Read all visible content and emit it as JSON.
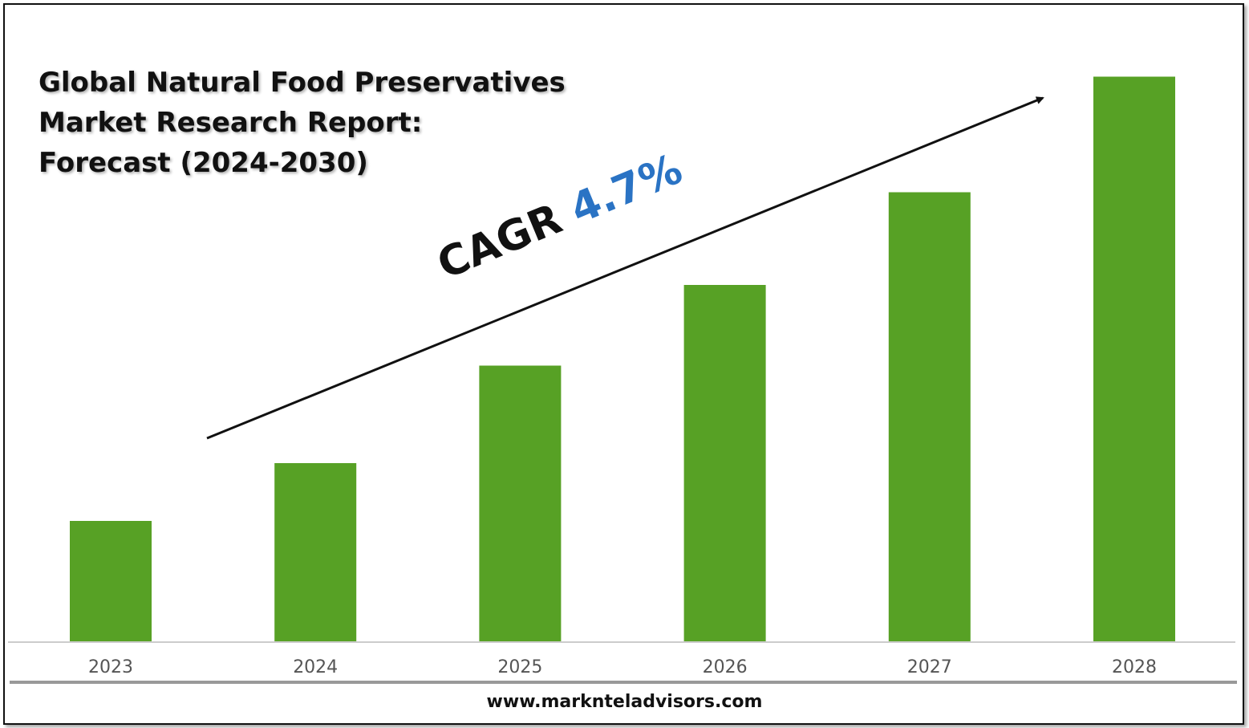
{
  "title_lines": [
    "Global Natural Food Preservatives",
    "Market Research Report:",
    "Forecast (2024-2030)"
  ],
  "annotation": {
    "label": "CAGR",
    "value": "4.7%",
    "value_color": "#2a73c4"
  },
  "footer": {
    "website": "www.marknteladvisors.com"
  },
  "colors": {
    "bar": "#57a125",
    "axis": "#cccccc",
    "separator": "#999999",
    "text": "#111111"
  },
  "chart_data": {
    "type": "bar",
    "categories": [
      "2023",
      "2024",
      "2025",
      "2026",
      "2027",
      "2028"
    ],
    "values": [
      100,
      148,
      229,
      296,
      373,
      469
    ],
    "ylim": [
      0,
      500
    ],
    "grid": false,
    "legend": "none",
    "y_axis_labels_shown": false
  }
}
